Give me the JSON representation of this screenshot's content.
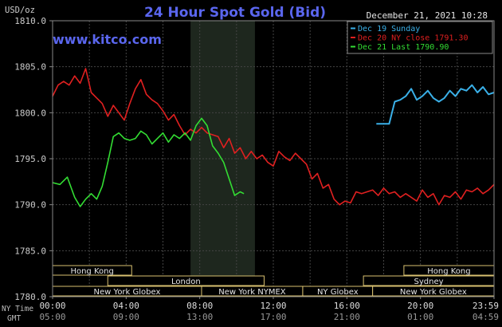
{
  "header": {
    "title": "24 Hour Spot Gold (Bid)",
    "datetime": "December 21, 2021 10:28",
    "site": "www.kitco.com",
    "y_unit": "USD/oz",
    "nytime_label": "NY Time",
    "gmt_label": "GMT"
  },
  "legend": [
    {
      "label": "Dec 19 Sunday",
      "color": "#3ab0e8"
    },
    {
      "label": "Dec 20 NY close 1791.30",
      "color": "#e02020"
    },
    {
      "label": "Dec 21 Last 1790.90",
      "color": "#33dd33"
    }
  ],
  "sessions": [
    {
      "label": "Hong Kong",
      "start": 0,
      "end": 4.3,
      "row": 0
    },
    {
      "label": "Hong Kong",
      "start": 19.1,
      "end": 24,
      "row": 0
    },
    {
      "label": "London",
      "start": 3,
      "end": 11.5,
      "row": 1
    },
    {
      "label": "Sydney",
      "start": 16.9,
      "end": 24,
      "row": 1
    },
    {
      "label": "New York Globex",
      "start": 0,
      "end": 8.1,
      "row": 2
    },
    {
      "label": "New York NYMEX",
      "start": 8.1,
      "end": 13.6,
      "row": 2
    },
    {
      "label": "NY Globex",
      "start": 13.6,
      "end": 17.4,
      "row": 2
    },
    {
      "label": "New York Globex",
      "start": 17.4,
      "end": 24,
      "row": 2
    }
  ],
  "chart_data": {
    "type": "line",
    "title": "24 Hour Spot Gold (Bid)",
    "ylabel": "USD/oz",
    "ylim": [
      1780,
      1810
    ],
    "yticks": [
      "1810.0",
      "1805.0",
      "1800.0",
      "1795.0",
      "1790.0",
      "1785.0",
      "1780.0"
    ],
    "xlim": [
      0,
      24
    ],
    "x_ticks_ny": [
      "00:00",
      "04:00",
      "08:00",
      "12:00",
      "16:00",
      "20:00",
      "23:59"
    ],
    "x_ticks_gmt": [
      "05:00",
      "09:00",
      "13:00",
      "17:00",
      "21:00",
      "01:00",
      "04:59"
    ],
    "shaded_hours": [
      7.5,
      11.0
    ],
    "grid": true,
    "series": [
      {
        "name": "Dec 20 NY close 1791.30",
        "color": "#e02020",
        "x": [
          0,
          0.3,
          0.6,
          0.9,
          1.2,
          1.5,
          1.8,
          2.1,
          2.4,
          2.7,
          3.0,
          3.3,
          3.6,
          3.9,
          4.2,
          4.5,
          4.8,
          5.1,
          5.4,
          5.7,
          6.0,
          6.3,
          6.6,
          6.9,
          7.2,
          7.5,
          7.8,
          8.1,
          8.4,
          8.7,
          9.0,
          9.3,
          9.6,
          9.9,
          10.2,
          10.5,
          10.8,
          11.1,
          11.4,
          11.7,
          12.0,
          12.3,
          12.6,
          12.9,
          13.2,
          13.5,
          13.8,
          14.1,
          14.4,
          14.7,
          15.0,
          15.3,
          15.6,
          15.9,
          16.2,
          16.5,
          16.8,
          17.1,
          17.4,
          17.7,
          18.0,
          18.3,
          18.6,
          18.9,
          19.2,
          19.5,
          19.8,
          20.1,
          20.4,
          20.7,
          21.0,
          21.3,
          21.6,
          21.9,
          22.2,
          22.5,
          22.8,
          23.1,
          23.4,
          23.7,
          24.0
        ],
        "y": [
          1801.8,
          1803.0,
          1803.4,
          1803.0,
          1804.0,
          1803.2,
          1804.8,
          1802.2,
          1801.6,
          1801.0,
          1799.6,
          1800.8,
          1800.0,
          1799.2,
          1801.0,
          1802.6,
          1803.6,
          1802.0,
          1801.4,
          1801.0,
          1800.2,
          1799.2,
          1799.8,
          1798.6,
          1797.6,
          1798.2,
          1797.8,
          1798.4,
          1797.8,
          1797.6,
          1797.4,
          1796.2,
          1797.2,
          1795.6,
          1796.2,
          1795.0,
          1795.8,
          1795.0,
          1795.4,
          1794.6,
          1794.2,
          1795.8,
          1795.2,
          1794.8,
          1795.6,
          1795.0,
          1794.4,
          1792.8,
          1793.4,
          1791.8,
          1792.2,
          1790.6,
          1790.0,
          1790.4,
          1790.2,
          1791.4,
          1791.2,
          1791.4,
          1791.6,
          1791.0,
          1791.8,
          1791.2,
          1791.4,
          1790.8,
          1791.2,
          1790.8,
          1790.4,
          1791.6,
          1790.8,
          1791.2,
          1790.0,
          1791.0,
          1790.8,
          1791.4,
          1790.6,
          1791.6,
          1791.4,
          1791.8,
          1791.2,
          1791.6,
          1792.2
        ]
      },
      {
        "name": "Dec 21 Last 1790.90",
        "color": "#33dd33",
        "x": [
          0,
          0.4,
          0.8,
          1.2,
          1.5,
          1.8,
          2.1,
          2.4,
          2.7,
          3.0,
          3.3,
          3.6,
          3.9,
          4.2,
          4.5,
          4.8,
          5.1,
          5.4,
          5.7,
          6.0,
          6.3,
          6.6,
          6.9,
          7.2,
          7.5,
          7.8,
          8.1,
          8.4,
          8.7,
          9.0,
          9.3,
          9.6,
          9.9,
          10.2,
          10.4
        ],
        "y": [
          1792.4,
          1792.2,
          1793.0,
          1790.8,
          1789.8,
          1790.6,
          1791.2,
          1790.6,
          1792.0,
          1794.6,
          1797.4,
          1797.8,
          1797.2,
          1797.0,
          1797.2,
          1798.0,
          1797.6,
          1796.6,
          1797.2,
          1797.8,
          1796.8,
          1797.6,
          1797.2,
          1797.8,
          1797.0,
          1798.6,
          1799.4,
          1798.6,
          1796.4,
          1795.6,
          1794.6,
          1792.8,
          1791.0,
          1791.4,
          1791.2
        ]
      },
      {
        "name": "Dec 19 Sunday",
        "color": "#3ab0e8",
        "x": [
          17.6,
          18.0,
          18.3,
          18.6,
          18.9,
          19.2,
          19.5,
          19.8,
          20.1,
          20.4,
          20.7,
          21.0,
          21.3,
          21.6,
          21.9,
          22.2,
          22.5,
          22.8,
          23.1,
          23.4,
          23.7,
          24.0
        ],
        "y": [
          1798.8,
          1798.8,
          1798.8,
          1801.2,
          1801.4,
          1801.8,
          1802.6,
          1801.4,
          1801.8,
          1802.4,
          1801.6,
          1801.2,
          1801.6,
          1802.4,
          1801.8,
          1802.6,
          1802.4,
          1803.0,
          1802.2,
          1802.8,
          1802.0,
          1802.2
        ]
      }
    ]
  }
}
